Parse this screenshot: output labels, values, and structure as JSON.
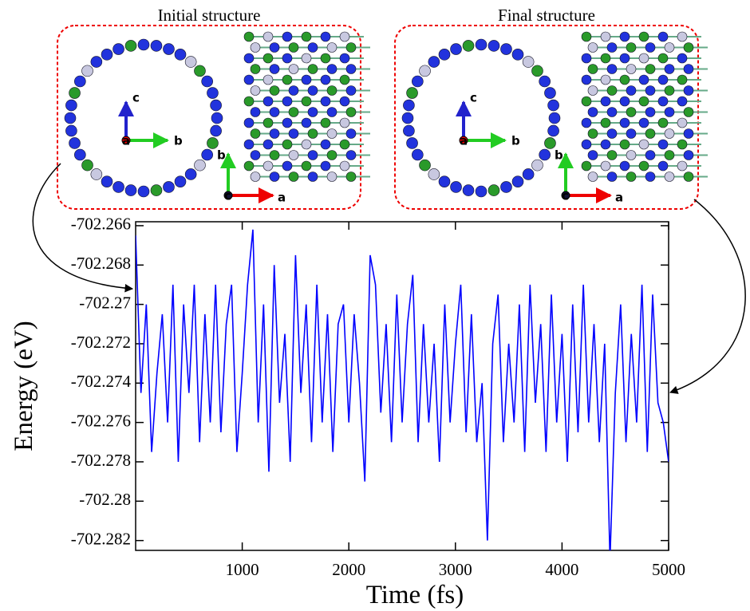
{
  "chart_data": {
    "type": "line",
    "xlabel": "Time (fs)",
    "ylabel": "Energy (eV)",
    "x": [
      0,
      50,
      100,
      150,
      200,
      250,
      300,
      350,
      400,
      450,
      500,
      550,
      600,
      650,
      700,
      750,
      800,
      850,
      900,
      950,
      1000,
      1050,
      1100,
      1150,
      1200,
      1250,
      1300,
      1350,
      1400,
      1450,
      1500,
      1550,
      1600,
      1650,
      1700,
      1750,
      1800,
      1850,
      1900,
      1950,
      2000,
      2050,
      2100,
      2150,
      2200,
      2250,
      2300,
      2350,
      2400,
      2450,
      2500,
      2550,
      2600,
      2650,
      2700,
      2750,
      2800,
      2850,
      2900,
      2950,
      3000,
      3050,
      3100,
      3150,
      3200,
      3250,
      3300,
      3350,
      3400,
      3450,
      3500,
      3550,
      3600,
      3650,
      3700,
      3750,
      3800,
      3850,
      3900,
      3950,
      4000,
      4050,
      4100,
      4150,
      4200,
      4250,
      4300,
      4350,
      4400,
      4450,
      4500,
      4550,
      4600,
      4650,
      4700,
      4750,
      4800,
      4850,
      4900,
      4950,
      5000
    ],
    "series": [
      {
        "color": "#0000ff",
        "values": [
          -702.2665,
          -702.2745,
          -702.27,
          -702.2775,
          -702.2735,
          -702.2705,
          -702.276,
          -702.269,
          -702.278,
          -702.27,
          -702.2745,
          -702.269,
          -702.277,
          -702.2705,
          -702.276,
          -702.269,
          -702.2765,
          -702.271,
          -702.269,
          -702.2775,
          -702.2735,
          -702.269,
          -702.2662,
          -702.276,
          -702.27,
          -702.2785,
          -702.268,
          -702.275,
          -702.2715,
          -702.278,
          -702.2675,
          -702.2745,
          -702.27,
          -702.277,
          -702.269,
          -702.276,
          -702.2705,
          -702.2775,
          -702.271,
          -702.27,
          -702.276,
          -702.2705,
          -702.274,
          -702.279,
          -702.2675,
          -702.269,
          -702.2755,
          -702.271,
          -702.277,
          -702.2695,
          -702.276,
          -702.271,
          -702.2685,
          -702.277,
          -702.271,
          -702.276,
          -702.272,
          -702.278,
          -702.27,
          -702.276,
          -702.272,
          -702.269,
          -702.2765,
          -702.2705,
          -702.277,
          -702.274,
          -702.282,
          -702.272,
          -702.2695,
          -702.277,
          -702.272,
          -702.276,
          -702.27,
          -702.2775,
          -702.269,
          -702.275,
          -702.271,
          -702.2775,
          -702.2695,
          -702.276,
          -702.2715,
          -702.278,
          -702.27,
          -702.2765,
          -702.269,
          -702.276,
          -702.271,
          -702.277,
          -702.272,
          -702.283,
          -702.2745,
          -702.27,
          -702.277,
          -702.2715,
          -702.276,
          -702.269,
          -702.2775,
          -702.2695,
          -702.275,
          -702.276,
          -702.278
        ]
      }
    ],
    "xlim": [
      0,
      5000
    ],
    "xticks": [
      1000,
      2000,
      3000,
      4000,
      5000
    ],
    "ylim": [
      -702.2825,
      -702.2658
    ],
    "yticks": [
      -702.266,
      -702.268,
      -702.27,
      -702.272,
      -702.274,
      -702.276,
      -702.278,
      -702.28,
      -702.282
    ]
  },
  "insets": [
    {
      "title": "Initial structure",
      "axis_labels": [
        "c",
        "a",
        "b",
        "b",
        "c",
        "a"
      ]
    },
    {
      "title": "Final structure",
      "axis_labels": [
        "c",
        "a",
        "b",
        "b",
        "c",
        "a"
      ]
    }
  ]
}
